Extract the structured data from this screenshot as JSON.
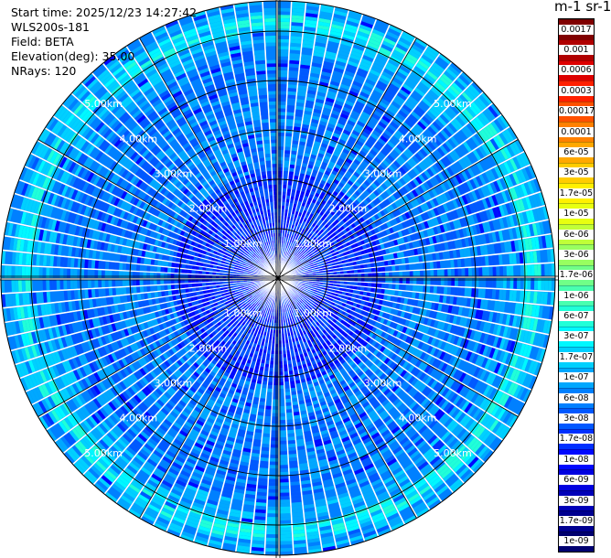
{
  "info": {
    "start_time": "Start time: 2025/12/23 14:27:42",
    "instrument": "WLS200s-181",
    "field": "Field: BETA",
    "elevation": "Elevation(deg): 35.00",
    "nrays": "NRays: 120"
  },
  "colorbar": {
    "title": "m-1 sr-1",
    "labels": [
      "0.0017",
      "0.001",
      "0.0006",
      "0.0003",
      "0.00017",
      "0.0001",
      "6e-05",
      "3e-05",
      "1.7e-05",
      "1e-05",
      "6e-06",
      "3e-06",
      "1.7e-06",
      "1e-06",
      "6e-07",
      "3e-07",
      "1.7e-07",
      "1e-07",
      "6e-08",
      "3e-08",
      "1.7e-08",
      "1e-08",
      "6e-09",
      "3e-09",
      "1.7e-09",
      "1e-09"
    ],
    "colors": [
      "#800000",
      "#b00000",
      "#dd0000",
      "#ff2000",
      "#ff5000",
      "#ff8000",
      "#ffa800",
      "#ffcc00",
      "#fff000",
      "#e8ff10",
      "#c0ff38",
      "#98ff60",
      "#70ff88",
      "#48ffb0",
      "#20ffd8",
      "#00f8ff",
      "#00d0ff",
      "#00a8ff",
      "#0080ff",
      "#0058ff",
      "#0030ff",
      "#0008ff",
      "#0000e0",
      "#0000b8",
      "#000090",
      "#000070"
    ]
  },
  "chart_data": {
    "type": "heatmap",
    "projection": "polar (PPI scan)",
    "field": "BETA",
    "units": "m-1 sr-1",
    "scale": "log",
    "elevation_deg": 35.0,
    "n_rays": 120,
    "range_rings_labels": [
      "1.00km",
      "2.00km",
      "3.00km",
      "4.00km",
      "5.00km"
    ],
    "range_rings_km": [
      1,
      2,
      3,
      4,
      5
    ],
    "max_range_km": 5.8,
    "dominant_value_range": [
      1e-08,
      3e-07
    ],
    "enhanced_band_km": [
      5.0,
      5.4
    ]
  }
}
